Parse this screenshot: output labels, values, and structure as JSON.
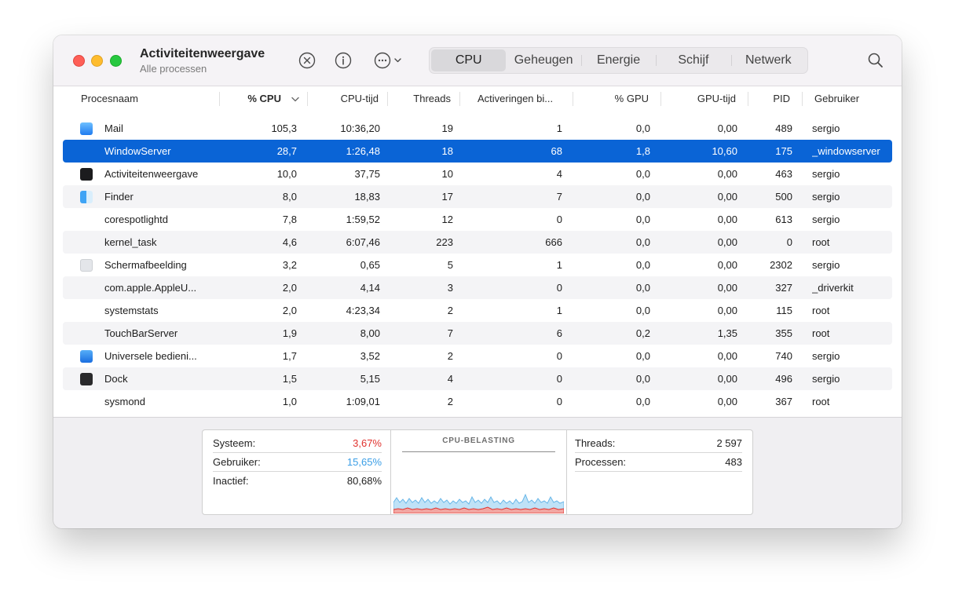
{
  "window": {
    "title": "Activiteitenweergave",
    "subtitle": "Alle processen"
  },
  "toolbar": {
    "stop_icon": "xmark-circle-icon",
    "info_icon": "info-circle-icon",
    "more_icon": "ellipsis-circle-icon",
    "search_icon": "magnifying-glass-icon"
  },
  "tabs": [
    {
      "label": "CPU",
      "active": true
    },
    {
      "label": "Geheugen",
      "active": false
    },
    {
      "label": "Energie",
      "active": false
    },
    {
      "label": "Schijf",
      "active": false
    },
    {
      "label": "Netwerk",
      "active": false
    }
  ],
  "columns": {
    "name": "Procesnaam",
    "cpu": "% CPU",
    "cputime": "CPU-tijd",
    "threads": "Threads",
    "wakeups": "Activeringen bi...",
    "gpu": "% GPU",
    "gputime": "GPU-tijd",
    "pid": "PID",
    "user": "Gebruiker"
  },
  "rows": [
    {
      "name": "Mail",
      "cpu": "105,3",
      "cputime": "10:36,20",
      "threads": "19",
      "wakeups": "1",
      "gpu": "0,0",
      "gputime": "0,00",
      "pid": "489",
      "user": "sergio",
      "icon": "mail-app-icon",
      "selected": false
    },
    {
      "name": "WindowServer",
      "cpu": "28,7",
      "cputime": "1:26,48",
      "threads": "18",
      "wakeups": "68",
      "gpu": "1,8",
      "gputime": "10,60",
      "pid": "175",
      "user": "_windowserver",
      "icon": "",
      "selected": true
    },
    {
      "name": "Activiteitenweergave",
      "cpu": "10,0",
      "cputime": "37,75",
      "threads": "10",
      "wakeups": "4",
      "gpu": "0,0",
      "gputime": "0,00",
      "pid": "463",
      "user": "sergio",
      "icon": "activity-monitor-app-icon",
      "selected": false
    },
    {
      "name": "Finder",
      "cpu": "8,0",
      "cputime": "18,83",
      "threads": "17",
      "wakeups": "7",
      "gpu": "0,0",
      "gputime": "0,00",
      "pid": "500",
      "user": "sergio",
      "icon": "finder-app-icon",
      "selected": false
    },
    {
      "name": "corespotlightd",
      "cpu": "7,8",
      "cputime": "1:59,52",
      "threads": "12",
      "wakeups": "0",
      "gpu": "0,0",
      "gputime": "0,00",
      "pid": "613",
      "user": "sergio",
      "icon": "",
      "selected": false
    },
    {
      "name": "kernel_task",
      "cpu": "4,6",
      "cputime": "6:07,46",
      "threads": "223",
      "wakeups": "666",
      "gpu": "0,0",
      "gputime": "0,00",
      "pid": "0",
      "user": "root",
      "icon": "",
      "selected": false
    },
    {
      "name": "Schermafbeelding",
      "cpu": "3,2",
      "cputime": "0,65",
      "threads": "5",
      "wakeups": "1",
      "gpu": "0,0",
      "gputime": "0,00",
      "pid": "2302",
      "user": "sergio",
      "icon": "screenshot-app-icon",
      "selected": false
    },
    {
      "name": "com.apple.AppleU...",
      "cpu": "2,0",
      "cputime": "4,14",
      "threads": "3",
      "wakeups": "0",
      "gpu": "0,0",
      "gputime": "0,00",
      "pid": "327",
      "user": "_driverkit",
      "icon": "",
      "selected": false
    },
    {
      "name": "systemstats",
      "cpu": "2,0",
      "cputime": "4:23,34",
      "threads": "2",
      "wakeups": "1",
      "gpu": "0,0",
      "gputime": "0,00",
      "pid": "115",
      "user": "root",
      "icon": "",
      "selected": false
    },
    {
      "name": "TouchBarServer",
      "cpu": "1,9",
      "cputime": "8,00",
      "threads": "7",
      "wakeups": "6",
      "gpu": "0,2",
      "gputime": "1,35",
      "pid": "355",
      "user": "root",
      "icon": "",
      "selected": false
    },
    {
      "name": "Universele bedieni...",
      "cpu": "1,7",
      "cputime": "3,52",
      "threads": "2",
      "wakeups": "0",
      "gpu": "0,0",
      "gputime": "0,00",
      "pid": "740",
      "user": "sergio",
      "icon": "universal-control-app-icon",
      "selected": false
    },
    {
      "name": "Dock",
      "cpu": "1,5",
      "cputime": "5,15",
      "threads": "4",
      "wakeups": "0",
      "gpu": "0,0",
      "gputime": "0,00",
      "pid": "496",
      "user": "sergio",
      "icon": "dock-app-icon",
      "selected": false
    },
    {
      "name": "sysmond",
      "cpu": "1,0",
      "cputime": "1:09,01",
      "threads": "2",
      "wakeups": "0",
      "gpu": "0,0",
      "gputime": "0,00",
      "pid": "367",
      "user": "root",
      "icon": "",
      "selected": false
    }
  ],
  "footer": {
    "system_label": "Systeem:",
    "system_value": "3,67%",
    "user_label": "Gebruiker:",
    "user_value": "15,65%",
    "idle_label": "Inactief:",
    "idle_value": "80,68%",
    "graph_title": "CPU-BELASTING",
    "threads_label": "Threads:",
    "threads_value": "2 597",
    "processes_label": "Processen:",
    "processes_value": "483"
  },
  "colors": {
    "system": "#e0322e",
    "user": "#3b9ee6",
    "selection": "#0a64d6"
  }
}
